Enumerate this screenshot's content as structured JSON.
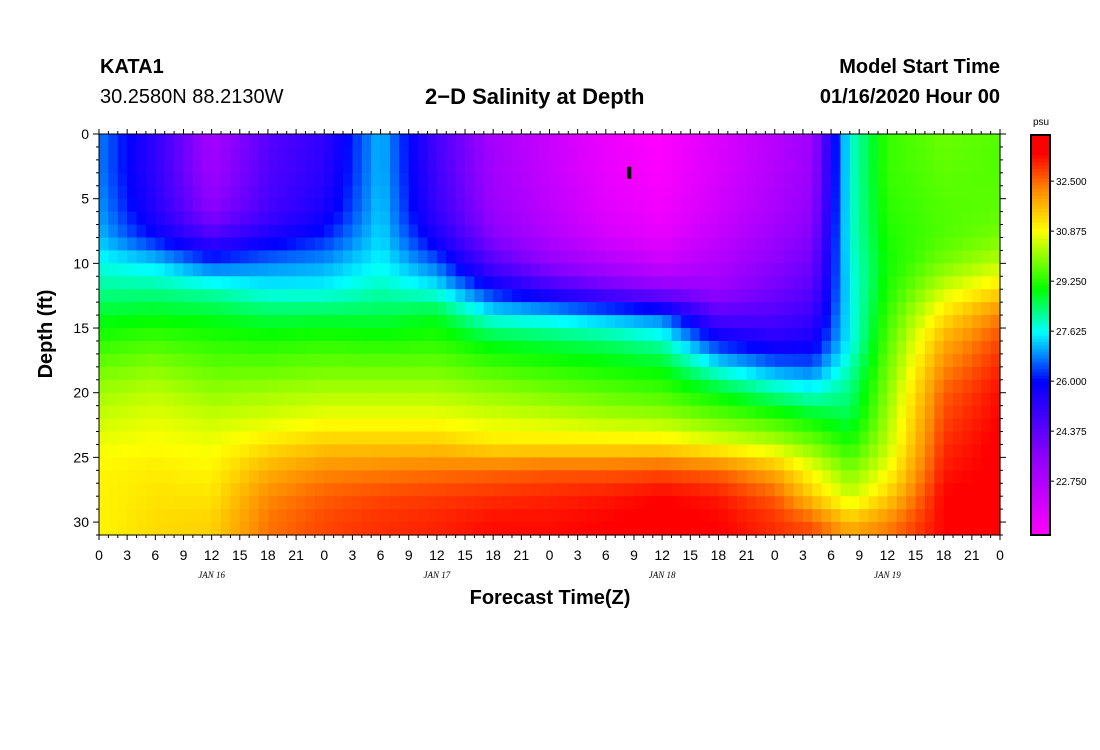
{
  "header": {
    "station_id": "KATA1",
    "coordinates": "30.2580N 88.2130W",
    "title": "2−D Salinity at Depth",
    "model_start_label": "Model Start Time",
    "model_start_value": "01/16/2020 Hour 00"
  },
  "chart_data": {
    "type": "heatmap",
    "title": "2−D Salinity at Depth",
    "xlabel": "Forecast Time(Z)",
    "ylabel": "Depth (ft)",
    "x_hours_range": [
      0,
      96
    ],
    "y_range": [
      0,
      31
    ],
    "y_ticks": [
      0,
      5,
      10,
      15,
      20,
      25,
      30
    ],
    "x_tick_labels": [
      "0",
      "3",
      "6",
      "9",
      "12",
      "15",
      "18",
      "21",
      "0",
      "3",
      "6",
      "9",
      "12",
      "15",
      "18",
      "21",
      "0",
      "3",
      "6",
      "9",
      "12",
      "15",
      "18",
      "21",
      "0",
      "3",
      "6",
      "9",
      "12",
      "15",
      "18",
      "21",
      "0"
    ],
    "date_labels": [
      {
        "label": "JAN 16",
        "hour": 12
      },
      {
        "label": "JAN 17",
        "hour": 36
      },
      {
        "label": "JAN 18",
        "hour": 60
      },
      {
        "label": "JAN 19",
        "hour": 84
      }
    ],
    "colorbar": {
      "unit": "psu",
      "min": 21.0,
      "max": 34.0,
      "tick_labels": [
        "32.500",
        "30.875",
        "29.250",
        "27.625",
        "26.000",
        "24.375",
        "22.750"
      ],
      "tick_values": [
        32.5,
        30.875,
        29.25,
        27.625,
        26.0,
        24.375,
        22.75
      ]
    },
    "depth_levels_ft": [
      0,
      3,
      6,
      8,
      10,
      12,
      14,
      16,
      18,
      20,
      22,
      24,
      26,
      28,
      30,
      31
    ],
    "time_hours": [
      0,
      6,
      12,
      18,
      24,
      30,
      36,
      42,
      48,
      54,
      60,
      66,
      72,
      76,
      80,
      84,
      90,
      96
    ],
    "salinity_profiles": [
      [
        26.8,
        26.8,
        27.0,
        27.2,
        27.7,
        28.2,
        28.8,
        29.3,
        29.8,
        30.2,
        30.5,
        30.8,
        31.0,
        31.0,
        31.0,
        31.0
      ],
      [
        25.2,
        25.2,
        25.4,
        26.0,
        27.4,
        28.2,
        28.9,
        29.5,
        30.0,
        30.4,
        30.7,
        30.9,
        31.1,
        31.2,
        31.3,
        31.3
      ],
      [
        23.0,
        23.2,
        23.6,
        24.8,
        26.5,
        28.0,
        28.8,
        29.3,
        29.7,
        30.1,
        30.5,
        30.8,
        31.0,
        31.2,
        31.4,
        31.4
      ],
      [
        24.5,
        24.6,
        24.8,
        25.6,
        26.8,
        27.6,
        28.6,
        29.2,
        29.7,
        30.2,
        30.6,
        31.2,
        31.8,
        32.2,
        32.4,
        32.4
      ],
      [
        25.2,
        25.3,
        25.6,
        26.2,
        27.0,
        27.6,
        28.6,
        29.3,
        29.8,
        30.3,
        30.8,
        31.5,
        32.2,
        32.6,
        32.8,
        32.8
      ],
      [
        27.2,
        27.2,
        27.3,
        27.4,
        27.6,
        28.0,
        28.6,
        29.2,
        29.8,
        30.3,
        30.8,
        31.5,
        32.3,
        32.8,
        33.0,
        33.0
      ],
      [
        24.8,
        24.9,
        25.1,
        25.6,
        26.6,
        27.6,
        28.8,
        29.3,
        29.8,
        30.3,
        30.8,
        31.5,
        32.4,
        32.9,
        33.1,
        33.1
      ],
      [
        23.0,
        23.1,
        23.3,
        23.7,
        24.6,
        26.0,
        27.6,
        28.8,
        29.5,
        30.1,
        30.6,
        31.2,
        32.5,
        33.0,
        33.3,
        33.3
      ],
      [
        22.2,
        22.3,
        22.5,
        22.8,
        23.5,
        25.0,
        27.4,
        28.6,
        29.3,
        29.9,
        30.5,
        31.2,
        32.6,
        33.1,
        33.3,
        33.3
      ],
      [
        21.4,
        21.5,
        21.7,
        22.0,
        22.8,
        24.2,
        27.0,
        28.4,
        29.1,
        29.7,
        30.3,
        31.2,
        32.6,
        33.2,
        33.4,
        33.4
      ],
      [
        21.0,
        21.1,
        21.3,
        21.6,
        22.2,
        23.6,
        26.6,
        28.0,
        28.9,
        29.5,
        30.2,
        31.2,
        32.7,
        33.4,
        33.5,
        33.5
      ],
      [
        21.8,
        21.9,
        22.1,
        22.4,
        22.8,
        23.3,
        24.5,
        26.0,
        27.6,
        28.9,
        29.8,
        30.8,
        32.5,
        33.2,
        33.4,
        33.4
      ],
      [
        22.6,
        22.7,
        22.9,
        23.2,
        23.6,
        24.0,
        24.6,
        25.4,
        26.8,
        28.2,
        29.4,
        30.4,
        31.8,
        32.6,
        33.0,
        33.0
      ],
      [
        23.2,
        23.3,
        23.5,
        23.8,
        24.1,
        24.5,
        25.0,
        25.6,
        26.6,
        27.8,
        29.0,
        29.9,
        30.8,
        31.5,
        32.6,
        32.8
      ],
      [
        27.8,
        27.8,
        27.8,
        27.8,
        27.7,
        27.6,
        27.6,
        27.6,
        28.0,
        28.3,
        28.6,
        29.2,
        29.9,
        30.5,
        31.6,
        32.0
      ],
      [
        29.4,
        29.4,
        29.3,
        29.2,
        29.1,
        29.2,
        29.4,
        29.6,
        29.8,
        30.0,
        30.2,
        30.4,
        30.8,
        31.4,
        32.2,
        32.4
      ],
      [
        29.8,
        29.7,
        29.6,
        29.6,
        29.9,
        30.5,
        31.2,
        31.8,
        32.2,
        32.6,
        32.8,
        33.0,
        33.2,
        33.4,
        33.4,
        33.4
      ],
      [
        29.6,
        29.6,
        29.7,
        29.9,
        30.4,
        31.3,
        32.3,
        32.8,
        33.1,
        33.3,
        33.4,
        33.5,
        33.5,
        33.6,
        33.6,
        33.6
      ]
    ],
    "marker": {
      "hour": 56.5,
      "depth_ft": 3
    }
  }
}
